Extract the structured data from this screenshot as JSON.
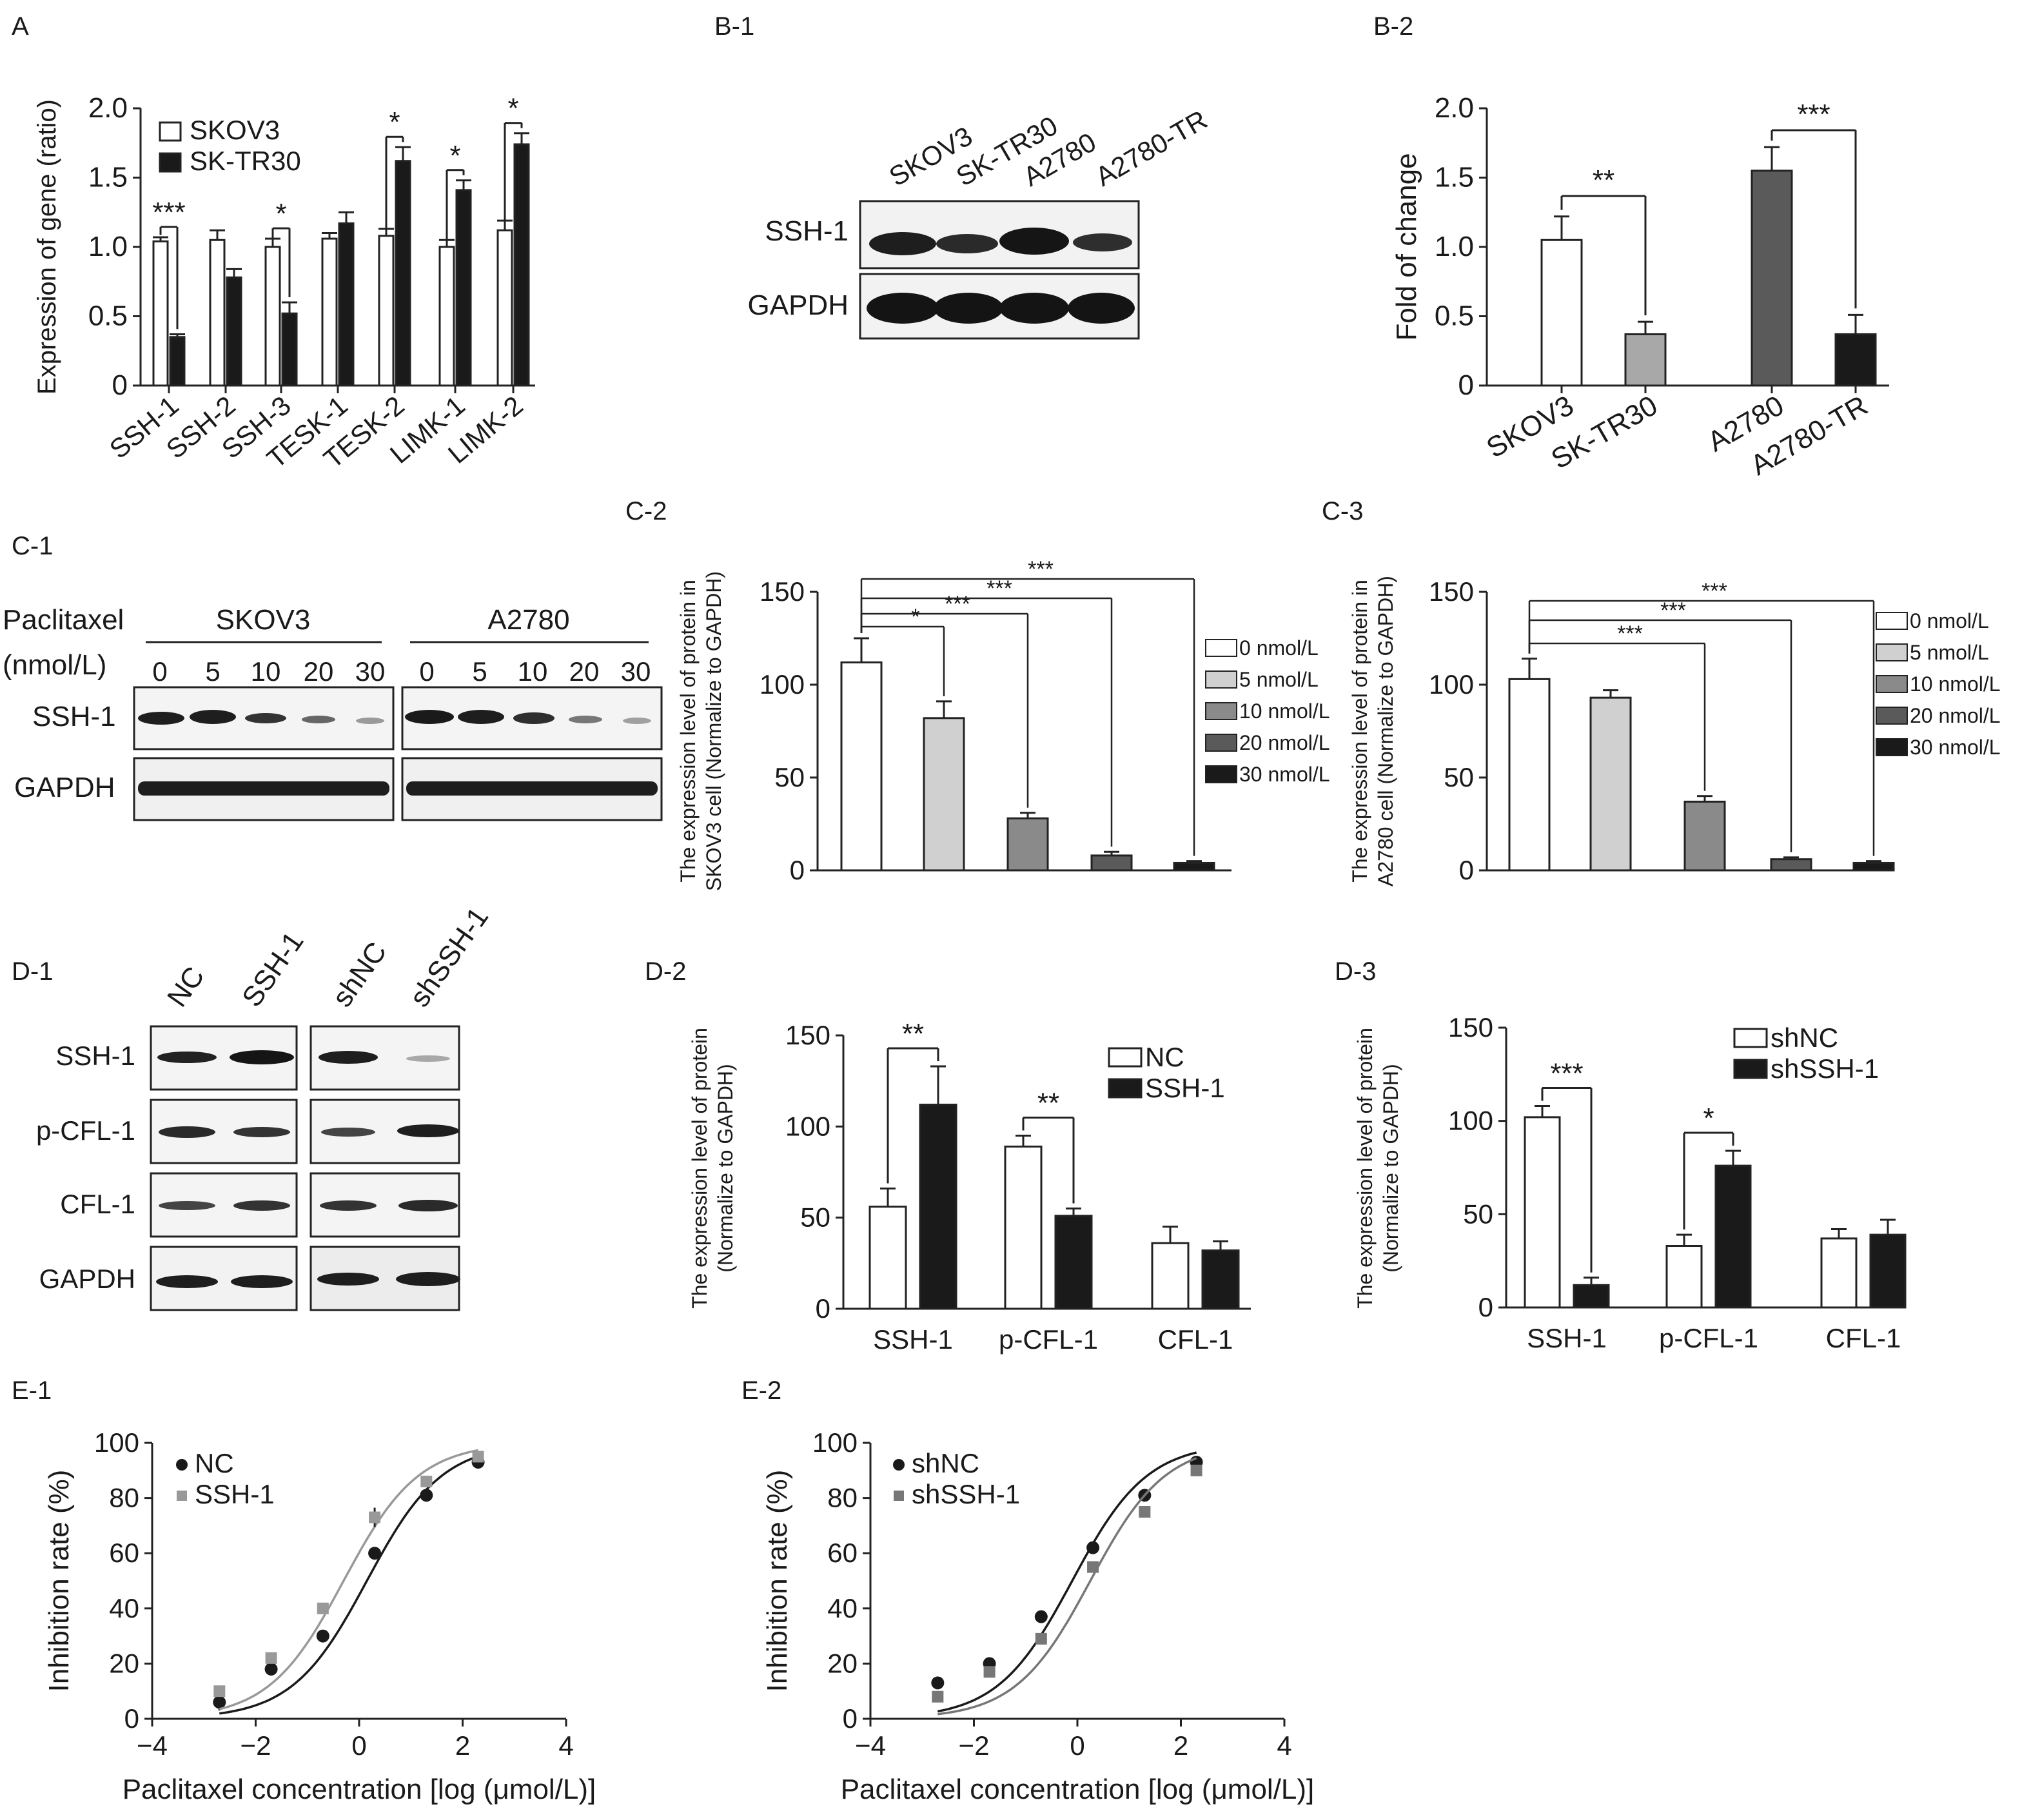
{
  "panels": {
    "A": "A",
    "B1": "B-1",
    "B2": "B-2",
    "C1": "C-1",
    "C2": "C-2",
    "C3": "C-3",
    "D1": "D-1",
    "D2": "D-2",
    "D3": "D-3",
    "E1": "E-1",
    "E2": "E-2"
  },
  "colors": {
    "white": "#ffffff",
    "light": "#d0d0d0",
    "mid": "#a8a8a8",
    "grey": "#8a8a8a",
    "dark": "#5a5a5a",
    "black": "#1a1a1a"
  },
  "blots": {
    "B1": {
      "lanes": [
        "SKOV3",
        "SK-TR30",
        "A2780",
        "A2780-TR"
      ],
      "rows": [
        "SSH-1",
        "GAPDH"
      ]
    },
    "C1": {
      "treatment_label": "Paclitaxel",
      "unit_label": "(nmol/L)",
      "groups": [
        "SKOV3",
        "A2780"
      ],
      "doses": [
        "0",
        "5",
        "10",
        "20",
        "30"
      ],
      "rows": [
        "SSH-1",
        "GAPDH"
      ]
    },
    "D1": {
      "lanes": [
        "NC",
        "SSH-1",
        "shNC",
        "shSSH-1"
      ],
      "rows": [
        "SSH-1",
        "p-CFL-1",
        "CFL-1",
        "GAPDH"
      ]
    }
  },
  "chart_data": [
    {
      "id": "A",
      "type": "bar",
      "ylabel": "Expression of gene (ratio)",
      "ylim": [
        0,
        2.0
      ],
      "yticks": [
        "0",
        "0.5",
        "1.0",
        "1.5",
        "2.0"
      ],
      "categories": [
        "SSH-1",
        "SSH-2",
        "SSH-3",
        "TESK-1",
        "TESK-2",
        "LIMK-1",
        "LIMK-2"
      ],
      "series": [
        {
          "name": "SKOV3",
          "values": [
            1.04,
            1.05,
            1.0,
            1.06,
            1.08,
            1.0,
            1.12
          ],
          "errors": [
            0.03,
            0.07,
            0.06,
            0.04,
            0.05,
            0.05,
            0.07
          ],
          "fill": "white"
        },
        {
          "name": "SK-TR30",
          "values": [
            0.35,
            0.78,
            0.52,
            1.17,
            1.62,
            1.41,
            1.74
          ],
          "errors": [
            0.02,
            0.06,
            0.08,
            0.08,
            0.1,
            0.07,
            0.08
          ],
          "fill": "black"
        }
      ],
      "significance": [
        "***",
        "",
        "*",
        "",
        "*",
        "*",
        "*"
      ],
      "legend": "top-left"
    },
    {
      "id": "B2",
      "type": "bar",
      "ylabel": "Fold of change",
      "ylim": [
        0,
        2.0
      ],
      "yticks": [
        "0",
        "0.5",
        "1.0",
        "1.5",
        "2.0"
      ],
      "categories": [
        "SKOV3",
        "SK-TR30",
        "A2780",
        "A2780-TR"
      ],
      "values": [
        1.05,
        0.37,
        1.55,
        0.37
      ],
      "errors": [
        0.17,
        0.09,
        0.17,
        0.14
      ],
      "fills": [
        "white",
        "mid",
        "dark",
        "black"
      ],
      "significance": [
        {
          "pair": [
            0,
            1
          ],
          "label": "**"
        },
        {
          "pair": [
            2,
            3
          ],
          "label": "***"
        }
      ]
    },
    {
      "id": "C2",
      "type": "bar",
      "ylabel_lines": [
        "The expression level of protein in",
        "SKOV3 cell (Normalize to GAPDH)"
      ],
      "ylim": [
        0,
        150
      ],
      "yticks": [
        "0",
        "50",
        "100",
        "150"
      ],
      "categories": [
        "0 nmol/L",
        "5 nmol/L",
        "10 nmol/L",
        "20 nmol/L",
        "30 nmol/L"
      ],
      "values": [
        112,
        82,
        28,
        8,
        4
      ],
      "errors": [
        13,
        9,
        3,
        2,
        1
      ],
      "fills": [
        "white",
        "light",
        "grey",
        "dark",
        "black"
      ],
      "significance": [
        {
          "to": 1,
          "label": "*"
        },
        {
          "to": 2,
          "label": "***"
        },
        {
          "to": 3,
          "label": "***"
        },
        {
          "to": 4,
          "label": "***"
        }
      ],
      "legend": "right"
    },
    {
      "id": "C3",
      "type": "bar",
      "ylabel_lines": [
        "The expression level of protein in",
        "A2780 cell (Normalize to GAPDH)"
      ],
      "ylim": [
        0,
        150
      ],
      "yticks": [
        "0",
        "50",
        "100",
        "150"
      ],
      "categories": [
        "0 nmol/L",
        "5 nmol/L",
        "10 nmol/L",
        "20 nmol/L",
        "30 nmol/L"
      ],
      "values": [
        103,
        93,
        37,
        6,
        4
      ],
      "errors": [
        11,
        4,
        3,
        1,
        1
      ],
      "fills": [
        "white",
        "light",
        "grey",
        "dark",
        "black"
      ],
      "significance": [
        {
          "to": 2,
          "label": "***"
        },
        {
          "to": 3,
          "label": "***"
        },
        {
          "to": 4,
          "label": "***"
        }
      ],
      "legend": "right"
    },
    {
      "id": "D2",
      "type": "bar",
      "ylabel_lines": [
        "The expression level of protein",
        "(Normalize to GAPDH)"
      ],
      "ylim": [
        0,
        150
      ],
      "yticks": [
        "0",
        "50",
        "100",
        "150"
      ],
      "categories": [
        "SSH-1",
        "p-CFL-1",
        "CFL-1"
      ],
      "series": [
        {
          "name": "NC",
          "values": [
            56,
            89,
            36
          ],
          "errors": [
            10,
            6,
            9
          ],
          "fill": "white"
        },
        {
          "name": "SSH-1",
          "values": [
            112,
            51,
            32
          ],
          "errors": [
            21,
            4,
            5
          ],
          "fill": "black"
        }
      ],
      "significance": [
        "**",
        "**",
        ""
      ],
      "legend": "top-right"
    },
    {
      "id": "D3",
      "type": "bar",
      "ylabel_lines": [
        "The expression level of protein",
        "(Normalize to GAPDH)"
      ],
      "ylim": [
        0,
        150
      ],
      "yticks": [
        "0",
        "50",
        "100",
        "150"
      ],
      "categories": [
        "SSH-1",
        "p-CFL-1",
        "CFL-1"
      ],
      "series": [
        {
          "name": "shNC",
          "values": [
            102,
            33,
            37
          ],
          "errors": [
            6,
            6,
            5
          ],
          "fill": "white"
        },
        {
          "name": "shSSH-1",
          "values": [
            12,
            76,
            39
          ],
          "errors": [
            4,
            8,
            8
          ],
          "fill": "black"
        }
      ],
      "significance": [
        "***",
        "*",
        ""
      ],
      "legend": "top-right"
    },
    {
      "id": "E1",
      "type": "scatter",
      "xlabel": "Paclitaxel concentration [log (μmol/L)]",
      "ylabel": "Inhibition rate (%)",
      "xlim": [
        -4,
        4
      ],
      "ylim": [
        0,
        100
      ],
      "xticks": [
        "−4",
        "−2",
        "0",
        "2",
        "4"
      ],
      "yticks": [
        "0",
        "20",
        "40",
        "60",
        "80",
        "100"
      ],
      "x": [
        -2.7,
        -1.7,
        -0.7,
        0.3,
        1.3,
        2.3
      ],
      "series": [
        {
          "name": "NC",
          "values": [
            6,
            18,
            30,
            60,
            81,
            93
          ],
          "errors": [
            3,
            1.5,
            2,
            1.5,
            1,
            1
          ],
          "marker": "circle",
          "color": "#1a1a1a",
          "fit_ic50": 0.15,
          "fit_slope": 0.6
        },
        {
          "name": "SSH-1",
          "values": [
            10,
            22,
            40,
            73,
            86,
            95
          ],
          "errors": [
            1.5,
            1.5,
            2,
            3.5,
            1.5,
            1
          ],
          "marker": "square",
          "color": "#999999",
          "fit_ic50": -0.3,
          "fit_slope": 0.6
        }
      ],
      "legend": "top-left"
    },
    {
      "id": "E2",
      "type": "scatter",
      "xlabel": "Paclitaxel concentration [log (μmol/L)]",
      "ylabel": "Inhibition rate (%)",
      "xlim": [
        -4,
        4
      ],
      "ylim": [
        0,
        100
      ],
      "xticks": [
        "−4",
        "−2",
        "0",
        "2",
        "4"
      ],
      "yticks": [
        "0",
        "20",
        "40",
        "60",
        "80",
        "100"
      ],
      "x": [
        -2.7,
        -1.7,
        -0.7,
        0.3,
        1.3,
        2.3
      ],
      "series": [
        {
          "name": "shNC",
          "values": [
            13,
            20,
            37,
            62,
            81,
            93
          ],
          "errors": [
            2,
            1.5,
            2,
            1.5,
            1,
            1
          ],
          "marker": "circle",
          "color": "#1a1a1a",
          "fit_ic50": -0.1,
          "fit_slope": 0.6
        },
        {
          "name": "shSSH-1",
          "values": [
            8,
            17,
            29,
            55,
            75,
            90
          ],
          "errors": [
            1.5,
            1.5,
            1.5,
            1.5,
            1,
            1
          ],
          "marker": "square",
          "color": "#777777",
          "fit_ic50": 0.25,
          "fit_slope": 0.6
        }
      ],
      "legend": "top-left"
    }
  ]
}
